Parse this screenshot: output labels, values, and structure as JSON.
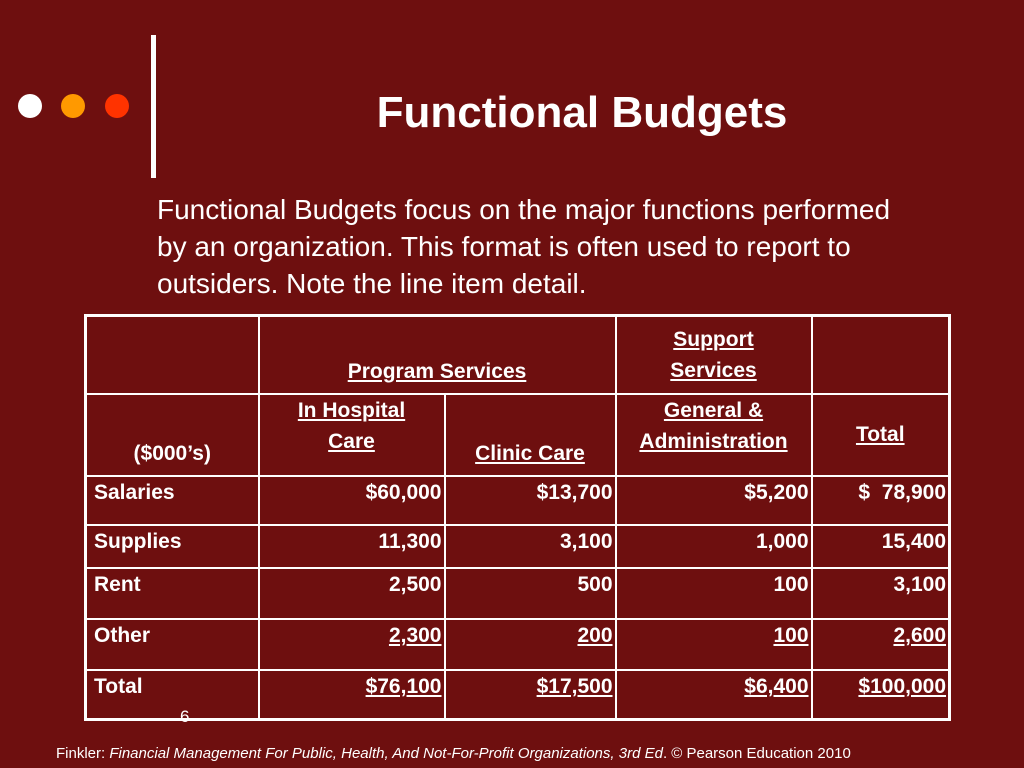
{
  "decor": {
    "dot_colors": [
      "#ffffff",
      "#ff9900",
      "#ff3300"
    ],
    "background": "#6e0f0f"
  },
  "slide": {
    "title": "Functional Budgets",
    "intro": "Functional Budgets focus on the major functions performed by an organization. This format is often used to report to outsiders. Note the line item detail.",
    "slide_number": "6"
  },
  "table": {
    "header_row1": {
      "program": "Program Services",
      "support": "Support Services"
    },
    "header_row2": {
      "units": "($000’s)",
      "in_hospital": "In Hospital Care",
      "clinic": "Clinic Care",
      "ga": "General & Administration",
      "total": "Total"
    },
    "rows": [
      {
        "label": "Salaries",
        "in_hospital": "$60,000",
        "clinic": "$13,700",
        "ga": "$5,200",
        "total": "$  78,900"
      },
      {
        "label": "Supplies",
        "in_hospital": "11,300",
        "clinic": "3,100",
        "ga": "1,000",
        "total": "15,400"
      },
      {
        "label": "Rent",
        "in_hospital": "2,500",
        "clinic": "500",
        "ga": "100",
        "total": "3,100"
      },
      {
        "label": "Other",
        "in_hospital": "2,300",
        "clinic": "200",
        "ga": "100",
        "total": "2,600"
      },
      {
        "label": "Total",
        "in_hospital": "$76,100",
        "clinic": "$17,500",
        "ga": "$6,400",
        "total": "$100,000"
      }
    ]
  },
  "footer": {
    "prefix": "Finkler: ",
    "book": "Financial Management For Public, Health, And Not-For-Profit Organizations, 3rd Ed",
    "suffix": ". © Pearson Education 2010"
  }
}
